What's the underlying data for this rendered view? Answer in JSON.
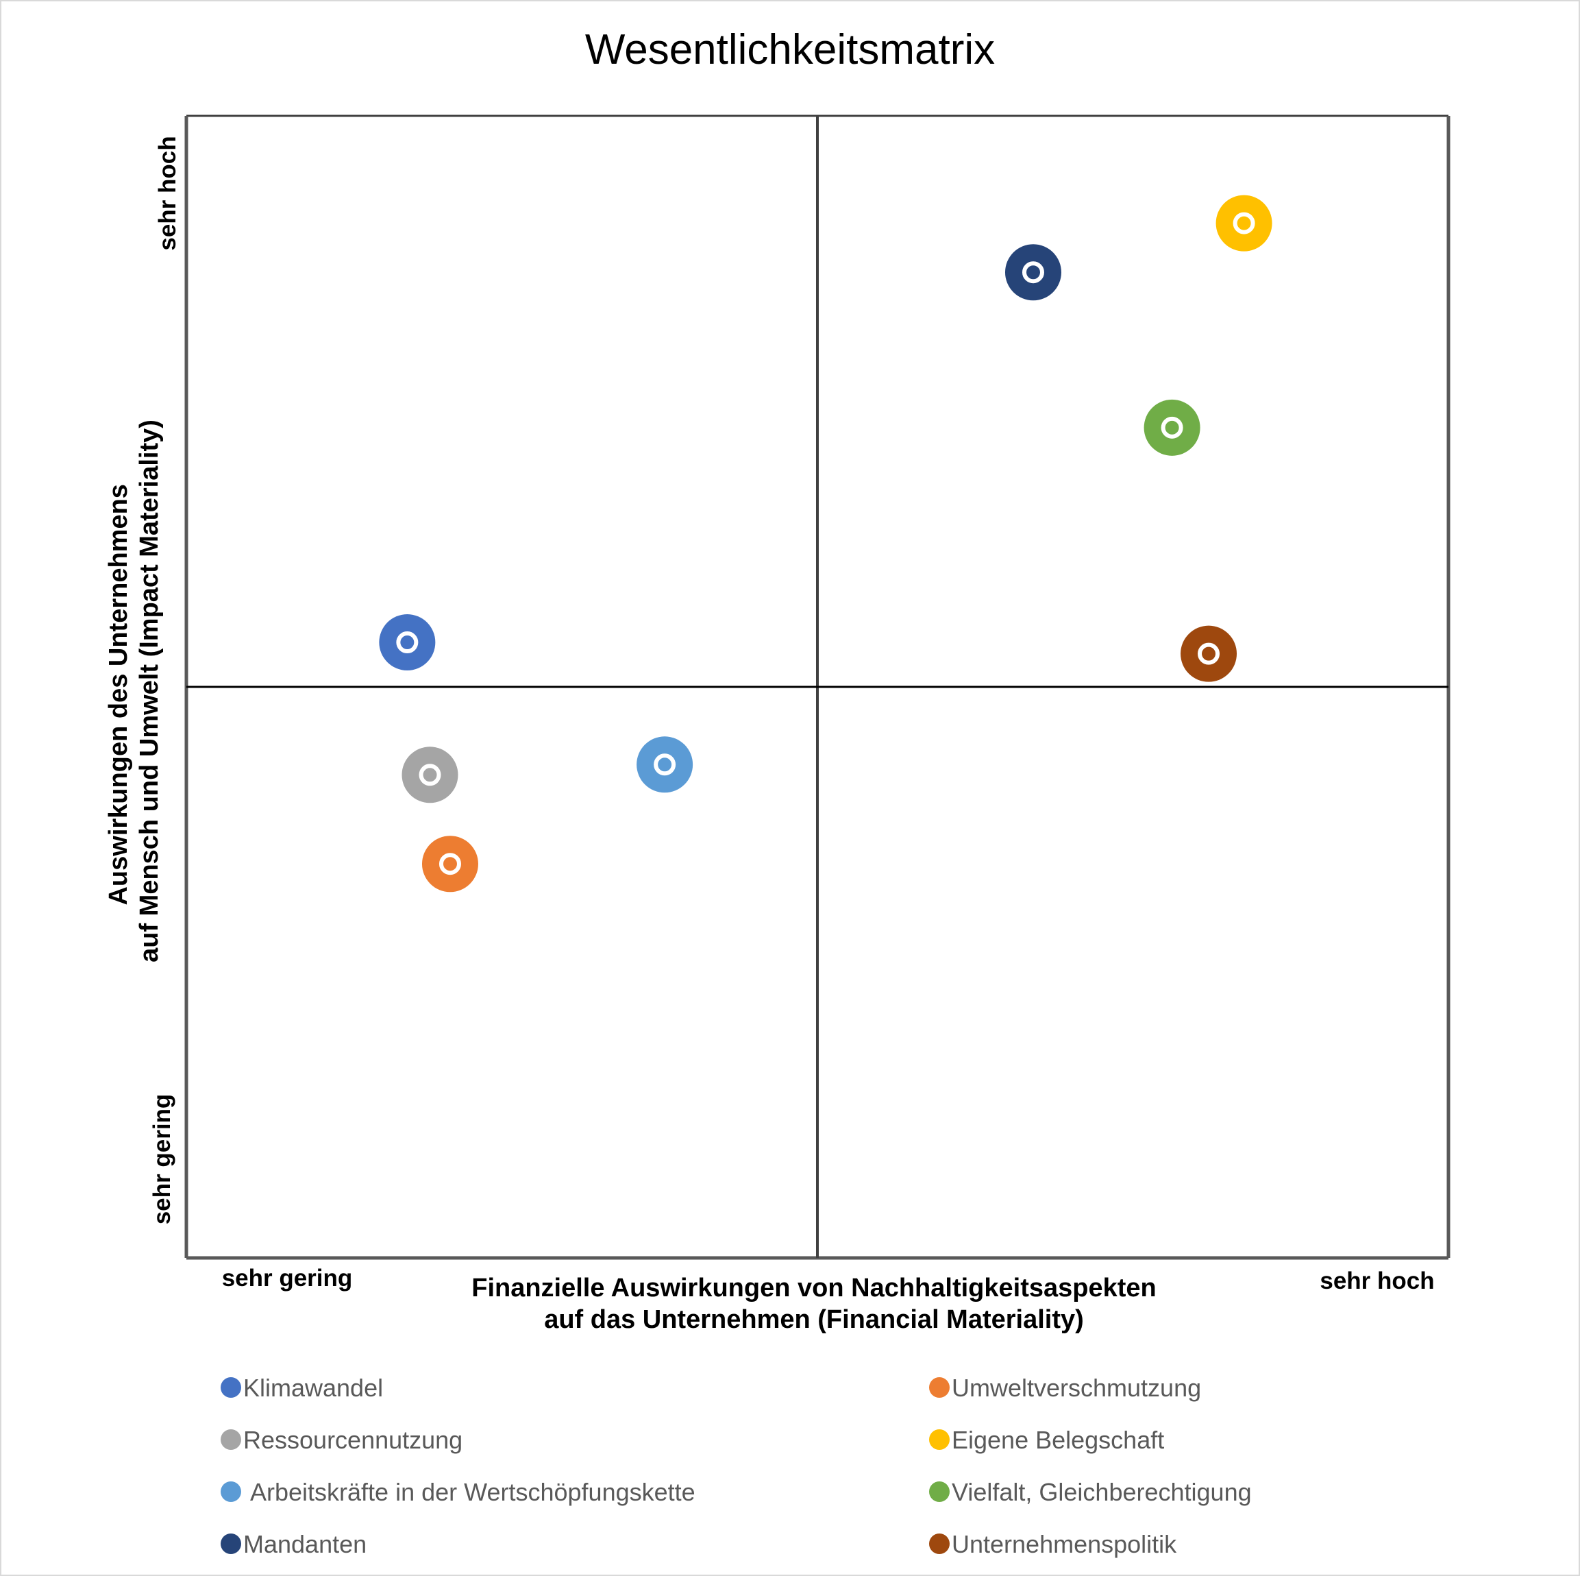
{
  "chart_data": {
    "type": "scatter",
    "title": "Wesentlichkeitsmatrix",
    "xlabel": [
      "Finanzielle Auswirkungen von Nachhaltigkeitsaspekten",
      "auf das Unternehmen (Financial Materiality)"
    ],
    "ylabel": [
      "Auswirkungen des Unternehmens",
      "auf Mensch und Umwelt (Impact Materiality)"
    ],
    "x_end_labels": {
      "low": "sehr gering",
      "high": "sehr hoch"
    },
    "y_end_labels": {
      "low": "sehr gering",
      "high": "sehr hoch"
    },
    "xlim": [
      0,
      10
    ],
    "ylim": [
      0,
      10
    ],
    "quadrant_lines": {
      "x": 5,
      "y": 5
    },
    "grid": false,
    "legend_position": "bottom",
    "series": [
      {
        "name": "Klimawandel",
        "color": "#4472C4",
        "x": 1.75,
        "y": 5.39
      },
      {
        "name": "Umweltverschmutzung",
        "color": "#ED7D31",
        "x": 2.09,
        "y": 3.45
      },
      {
        "name": "Ressourcennutzung",
        "color": "#A5A5A5",
        "x": 1.93,
        "y": 4.23
      },
      {
        "name": "Eigene Belegschaft",
        "color": "#FFC000",
        "x": 8.38,
        "y": 9.06
      },
      {
        "name": "Arbeitskräfte in der Wertschöpfungskette",
        "color": "#5B9BD5",
        "x": 3.79,
        "y": 4.32
      },
      {
        "name": "Vielfalt, Gleichberechtigung",
        "color": "#70AD47",
        "x": 7.81,
        "y": 7.27
      },
      {
        "name": "Mandanten",
        "color": "#264478",
        "x": 6.71,
        "y": 8.63
      },
      {
        "name": "Unternehmenspolitik",
        "color": "#9E480E",
        "x": 8.1,
        "y": 5.29
      }
    ]
  }
}
